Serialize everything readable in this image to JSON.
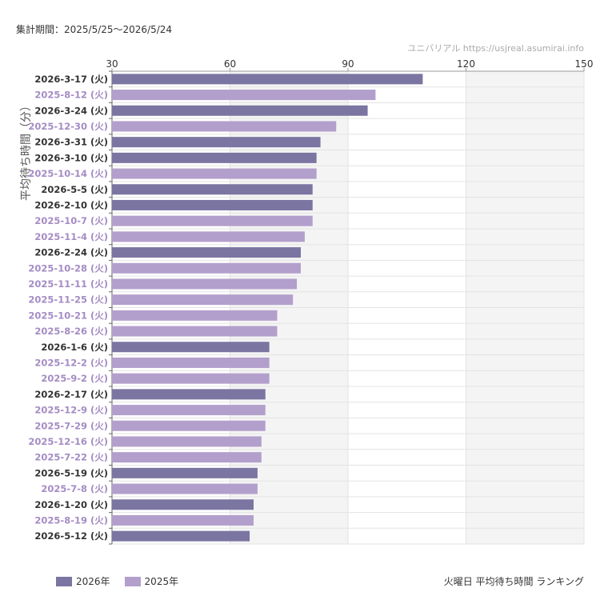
{
  "header": {
    "period": "集計期間：2025/5/25～2026/5/24",
    "credit": "ユニバリアル  https://usjreal.asumirai.info"
  },
  "footer": {
    "title": "火曜日 平均待ち時間 ランキング"
  },
  "colors": {
    "series_2026": "#7b75a2",
    "series_2025": "#b39fcc",
    "label_2026": "#333333",
    "label_2025": "#a58cc4",
    "band": "#f4f4f4",
    "grid": "#e3e3e3",
    "axis": "#999999"
  },
  "chart_data": {
    "type": "bar",
    "orientation": "horizontal",
    "ylabel": "平均待ち時間（分）",
    "xlim": [
      30,
      150
    ],
    "xticks": [
      30,
      60,
      90,
      120,
      150
    ],
    "shaded_ranges": [
      [
        60,
        90
      ],
      [
        120,
        150
      ]
    ],
    "legend": [
      {
        "name": "2026年",
        "series": "2026"
      },
      {
        "name": "2025年",
        "series": "2025"
      }
    ],
    "categories": [
      "2026-3-17 (火)",
      "2025-8-12 (火)",
      "2026-3-24 (火)",
      "2025-12-30 (火)",
      "2026-3-31 (火)",
      "2026-3-10 (火)",
      "2025-10-14 (火)",
      "2026-5-5 (火)",
      "2026-2-10 (火)",
      "2025-10-7 (火)",
      "2025-11-4 (火)",
      "2026-2-24 (火)",
      "2025-10-28 (火)",
      "2025-11-11 (火)",
      "2025-11-25 (火)",
      "2025-10-21 (火)",
      "2025-8-26 (火)",
      "2026-1-6 (火)",
      "2025-12-2 (火)",
      "2025-9-2 (火)",
      "2026-2-17 (火)",
      "2025-12-9 (火)",
      "2025-7-29 (火)",
      "2025-12-16 (火)",
      "2025-7-22 (火)",
      "2026-5-19 (火)",
      "2025-7-8 (火)",
      "2026-1-20 (火)",
      "2025-8-19 (火)",
      "2026-5-12 (火)"
    ],
    "values": [
      109,
      97,
      95,
      87,
      83,
      82,
      82,
      81,
      81,
      81,
      79,
      78,
      78,
      77,
      76,
      72,
      72,
      70,
      70,
      70,
      69,
      69,
      69,
      68,
      68,
      67,
      67,
      66,
      66,
      65
    ],
    "series_of": [
      "2026",
      "2025",
      "2026",
      "2025",
      "2026",
      "2026",
      "2025",
      "2026",
      "2026",
      "2025",
      "2025",
      "2026",
      "2025",
      "2025",
      "2025",
      "2025",
      "2025",
      "2026",
      "2025",
      "2025",
      "2026",
      "2025",
      "2025",
      "2025",
      "2025",
      "2026",
      "2025",
      "2026",
      "2025",
      "2026"
    ]
  }
}
